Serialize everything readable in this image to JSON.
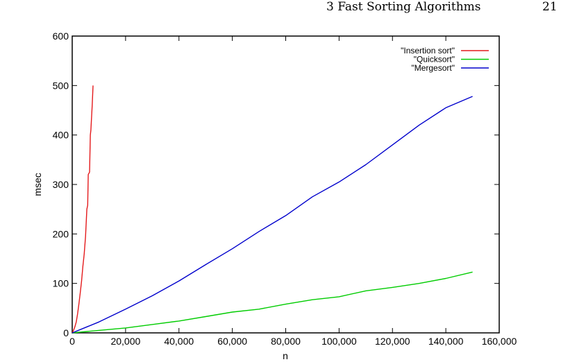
{
  "page_header": {
    "title": "3  Fast Sorting Algorithms",
    "page_number": "21"
  },
  "chart_data": {
    "type": "line",
    "title": "",
    "xlabel": "n",
    "ylabel": "msec",
    "xlim": [
      0,
      160000
    ],
    "ylim": [
      0,
      600
    ],
    "grid": false,
    "legend_position": "top-right",
    "x_ticks": [
      {
        "value": 0,
        "label": "0"
      },
      {
        "value": 20000,
        "label": "20,000"
      },
      {
        "value": 40000,
        "label": "40,000"
      },
      {
        "value": 60000,
        "label": "60,000"
      },
      {
        "value": 80000,
        "label": "80,000"
      },
      {
        "value": 100000,
        "label": "100,000"
      },
      {
        "value": 120000,
        "label": "120,000"
      },
      {
        "value": 140000,
        "label": "140,000"
      },
      {
        "value": 160000,
        "label": "160,000"
      }
    ],
    "y_ticks": [
      {
        "value": 0,
        "label": "0"
      },
      {
        "value": 100,
        "label": "100"
      },
      {
        "value": 200,
        "label": "200"
      },
      {
        "value": 300,
        "label": "300"
      },
      {
        "value": 400,
        "label": "400"
      },
      {
        "value": 500,
        "label": "500"
      },
      {
        "value": 600,
        "label": "600"
      }
    ],
    "series": [
      {
        "name": "\"Insertion sort\"",
        "color": "#e41a1c",
        "x": [
          0,
          500,
          1000,
          1500,
          2000,
          2500,
          3000,
          3500,
          4000,
          4500,
          5000,
          5500,
          5800,
          6000,
          6500,
          6800,
          7000,
          7500,
          7800
        ],
        "y": [
          0,
          5,
          12,
          22,
          38,
          58,
          80,
          105,
          135,
          160,
          195,
          250,
          258,
          320,
          325,
          400,
          410,
          460,
          500
        ]
      },
      {
        "name": "\"Quicksort\"",
        "color": "#00cc00",
        "x": [
          0,
          10000,
          20000,
          30000,
          40000,
          50000,
          60000,
          70000,
          80000,
          90000,
          100000,
          110000,
          120000,
          130000,
          140000,
          150000
        ],
        "y": [
          0,
          5,
          10,
          17,
          24,
          33,
          42,
          48,
          58,
          67,
          73,
          85,
          92,
          100,
          110,
          123
        ]
      },
      {
        "name": "\"Mergesort\"",
        "color": "#0000cc",
        "x": [
          0,
          10000,
          20000,
          30000,
          40000,
          50000,
          60000,
          70000,
          80000,
          90000,
          100000,
          110000,
          120000,
          130000,
          140000,
          150000
        ],
        "y": [
          0,
          22,
          48,
          75,
          105,
          138,
          170,
          205,
          237,
          275,
          305,
          340,
          380,
          420,
          455,
          478
        ]
      }
    ]
  }
}
